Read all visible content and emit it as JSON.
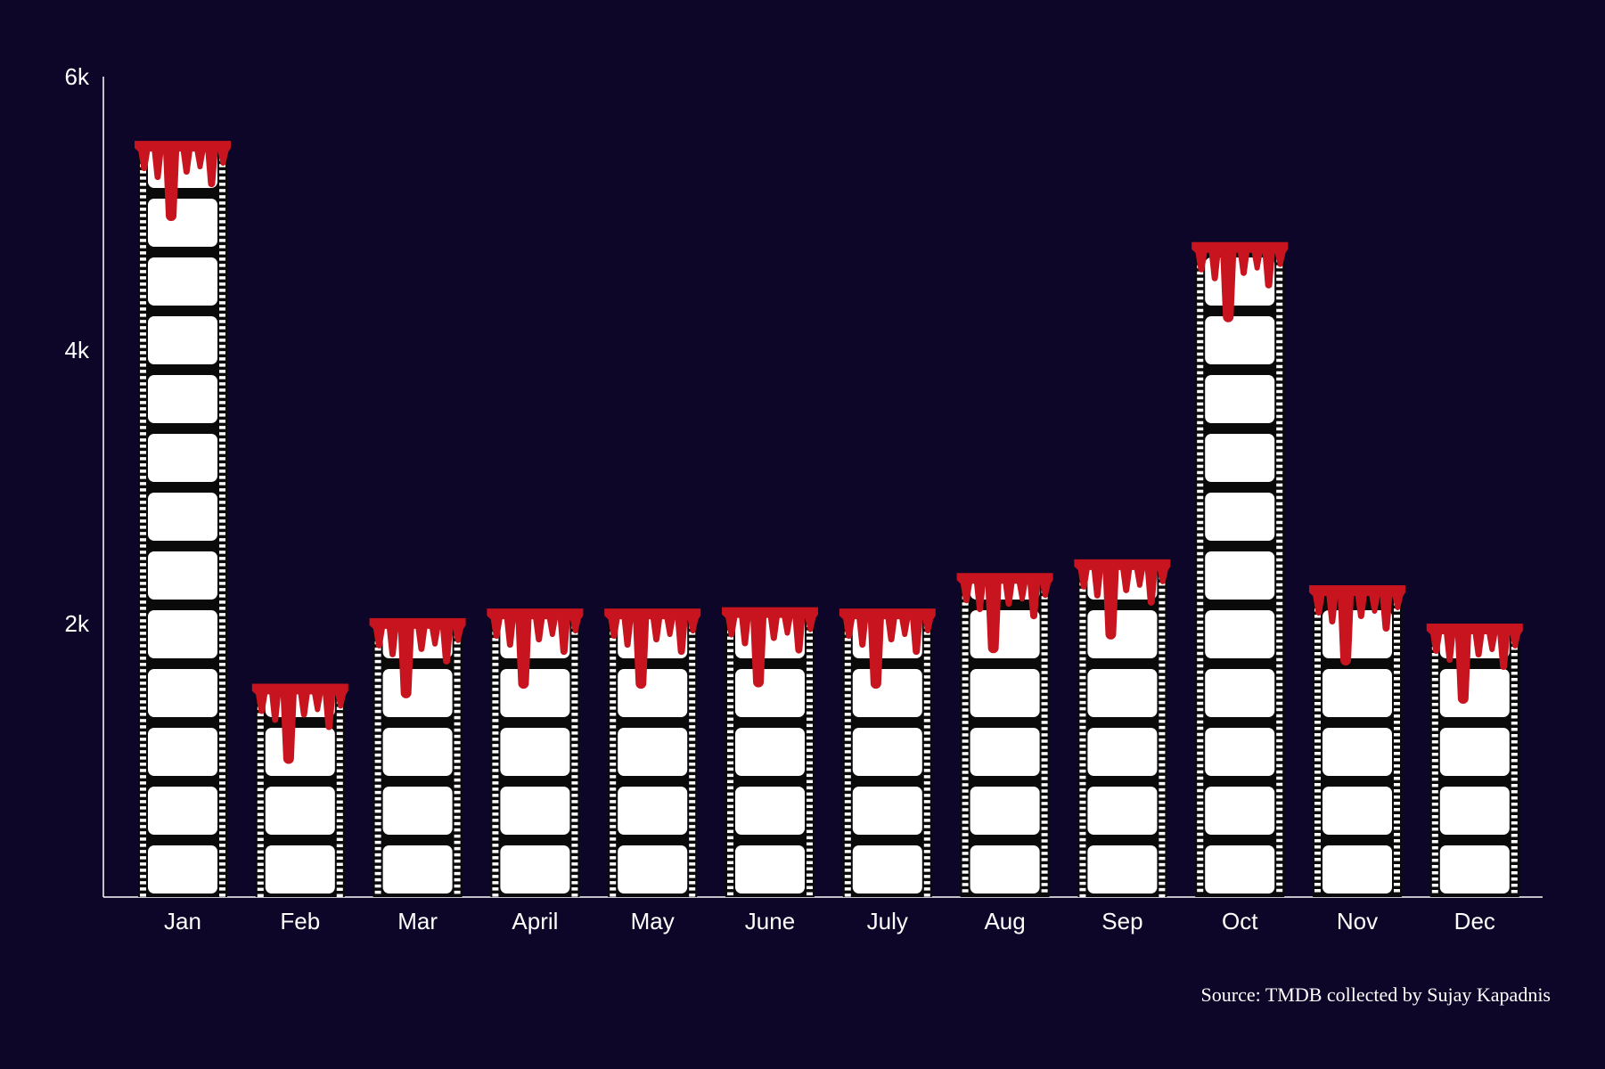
{
  "colors": {
    "background": "#0d0628",
    "film": "#0a0a0a",
    "frame": "#ffffff",
    "blood": "#c8141e",
    "text": "#ffffff",
    "axis": "#ffffff"
  },
  "chart_data": {
    "type": "bar",
    "title": "",
    "xlabel": "",
    "ylabel": "",
    "categories": [
      "Jan",
      "Feb",
      "Mar",
      "April",
      "May",
      "June",
      "July",
      "Aug",
      "Sep",
      "Oct",
      "Nov",
      "Dec"
    ],
    "values": [
      5530,
      1560,
      2040,
      2110,
      2110,
      2120,
      2110,
      2370,
      2470,
      4790,
      2280,
      2000
    ],
    "ylim": [
      0,
      6000
    ],
    "yticks": [
      {
        "value": 2000,
        "label": "2k"
      },
      {
        "value": 4000,
        "label": "4k"
      },
      {
        "value": 6000,
        "label": "6k"
      }
    ],
    "grid": false,
    "bar_style": "film-strip with dripping blood top",
    "source": "Source: TMDB collected by Sujay Kapadnis"
  }
}
